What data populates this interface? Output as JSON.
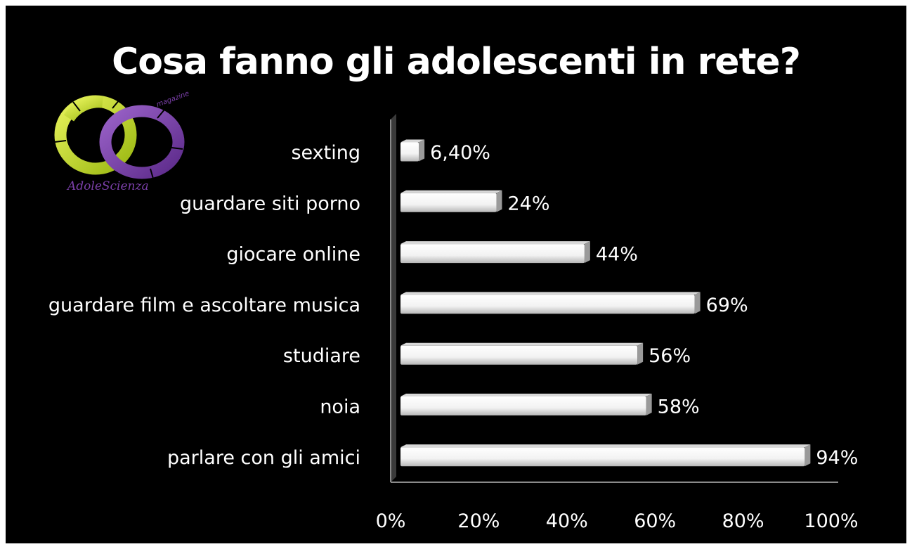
{
  "title": "Cosa fanno gli adolescenti in rete?",
  "logo": {
    "text": "AdoleScienza",
    "arc_text": "magazine",
    "colors": {
      "lime": "#c8dc1e",
      "purple": "#7a3fa8"
    }
  },
  "chart_data": {
    "type": "bar",
    "orientation": "horizontal",
    "title": "Cosa fanno gli adolescenti in rete?",
    "categories": [
      "sexting",
      "guardare siti porno",
      "giocare online",
      "guardare film e ascoltare musica",
      "studiare",
      "noia",
      "parlare con gli amici"
    ],
    "values": [
      6.4,
      24,
      44,
      69,
      56,
      58,
      94
    ],
    "value_labels": [
      "6,40%",
      "24%",
      "44%",
      "69%",
      "56%",
      "58%",
      "94%"
    ],
    "xlim": [
      0,
      100
    ],
    "xticks": [
      "0%",
      "20%",
      "40%",
      "60%",
      "80%",
      "100%"
    ],
    "xlabel": "",
    "ylabel": "",
    "grid": false,
    "legend": "none",
    "colors": {
      "background": "#000000",
      "bar": "#ffffff",
      "text": "#ffffff"
    }
  }
}
